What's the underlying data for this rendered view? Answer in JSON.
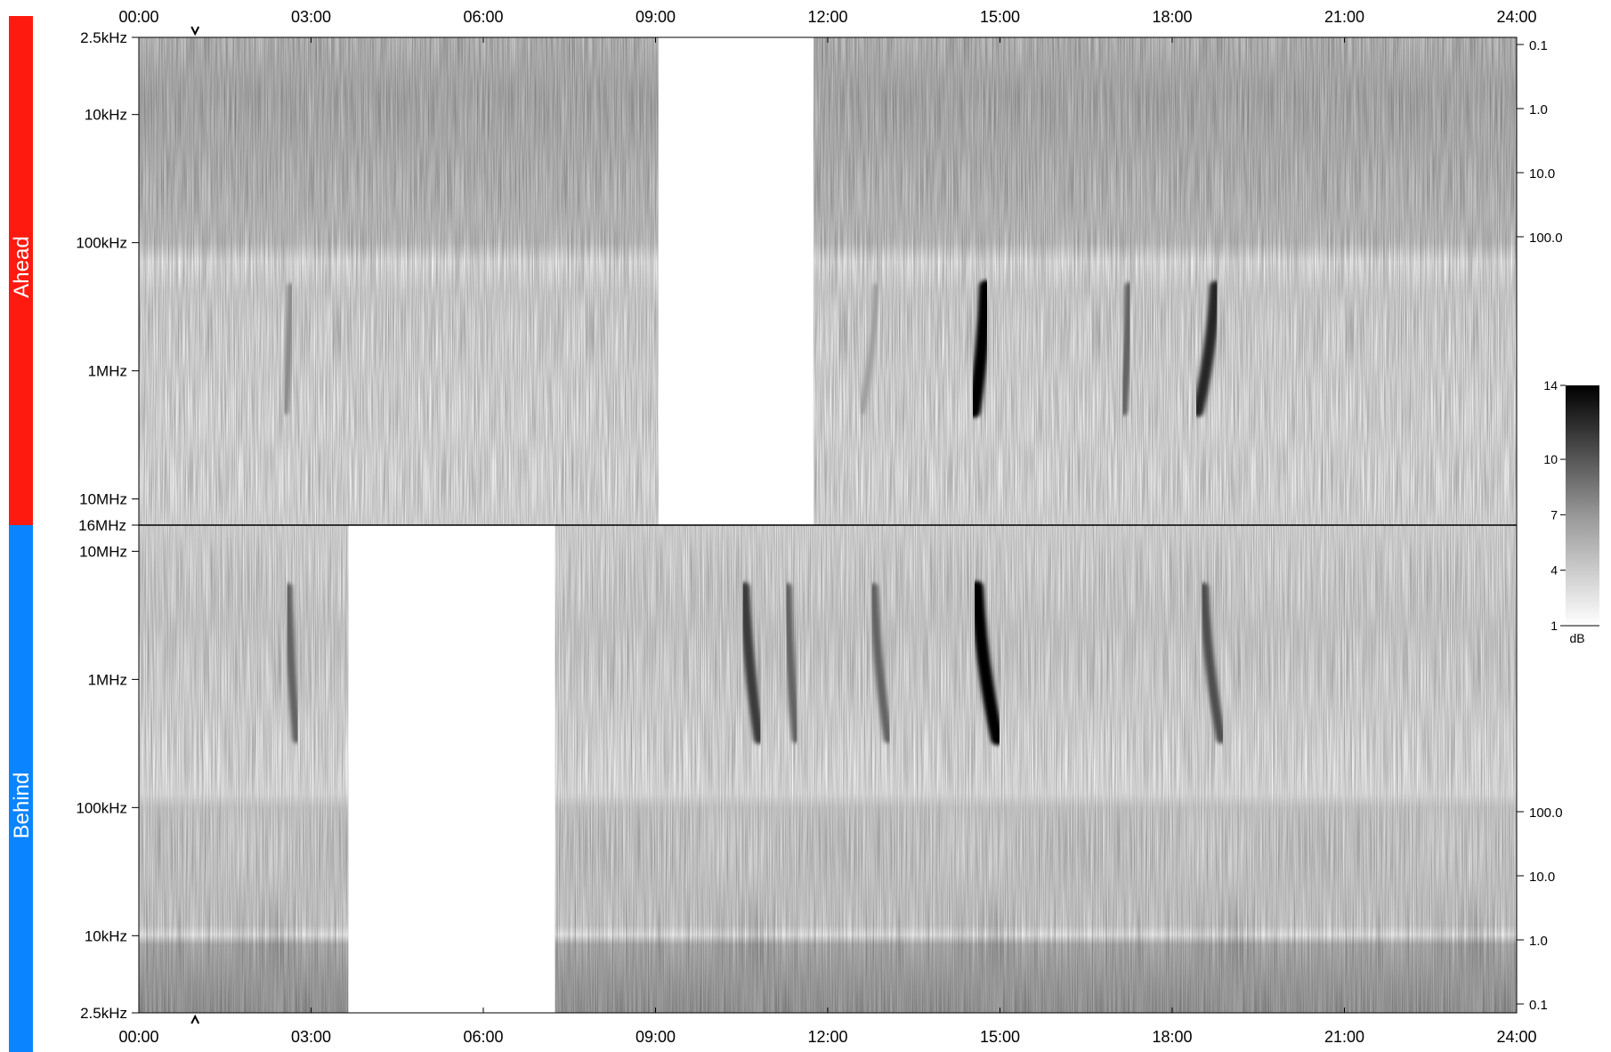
{
  "colors": {
    "ahead": "#ff1a0f",
    "behind": "#0a84ff",
    "ink": "#000000"
  },
  "chart_data": {
    "type": "heatmap",
    "title": "",
    "x_ticks": [
      "00:00",
      "03:00",
      "06:00",
      "09:00",
      "12:00",
      "15:00",
      "18:00",
      "21:00",
      "24:00"
    ],
    "x_range_hours": [
      0,
      24
    ],
    "panels": [
      {
        "name": "Ahead",
        "y_axis_top_to_bottom": true,
        "y_ticks_left": [
          "2.5kHz",
          "10kHz",
          "100kHz",
          "1MHz",
          "10MHz"
        ],
        "bottom_label": "16MHz",
        "y_ticks_right": [
          "0.1",
          "1.0",
          "10.0",
          "100.0"
        ],
        "data_gaps_hours": [
          [
            9.05,
            11.75
          ]
        ],
        "marker_time_hours": 0.98,
        "bursts": [
          {
            "start_hour": 12.85,
            "end_hour": 12.6,
            "intensity_db": 6
          },
          {
            "start_hour": 14.75,
            "end_hour": 14.55,
            "intensity_db": 14
          },
          {
            "start_hour": 18.75,
            "end_hour": 18.45,
            "intensity_db": 12
          },
          {
            "start_hour": 2.65,
            "end_hour": 2.55,
            "intensity_db": 7
          },
          {
            "start_hour": 17.25,
            "end_hour": 17.15,
            "intensity_db": 9
          }
        ]
      },
      {
        "name": "Behind",
        "y_axis_top_to_bottom": false,
        "y_ticks_left": [
          "10MHz",
          "1MHz",
          "100kHz",
          "10kHz",
          "2.5kHz"
        ],
        "y_ticks_right": [
          "100.0",
          "10.0",
          "1.0",
          "0.1"
        ],
        "data_gaps_hours": [
          [
            3.65,
            7.25
          ]
        ],
        "marker_time_hours": 0.98,
        "bursts": [
          {
            "start_hour": 2.6,
            "end_hour": 2.75,
            "intensity_db": 9
          },
          {
            "start_hour": 10.55,
            "end_hour": 10.8,
            "intensity_db": 11
          },
          {
            "start_hour": 11.3,
            "end_hour": 11.45,
            "intensity_db": 9
          },
          {
            "start_hour": 12.8,
            "end_hour": 13.05,
            "intensity_db": 9
          },
          {
            "start_hour": 14.6,
            "end_hour": 14.95,
            "intensity_db": 14
          },
          {
            "start_hour": 18.55,
            "end_hour": 18.85,
            "intensity_db": 10
          }
        ]
      }
    ],
    "colorbar": {
      "ticks": [
        "14",
        "10",
        "7",
        "4",
        "1"
      ],
      "unit": "dB",
      "range": [
        1,
        14
      ]
    }
  }
}
